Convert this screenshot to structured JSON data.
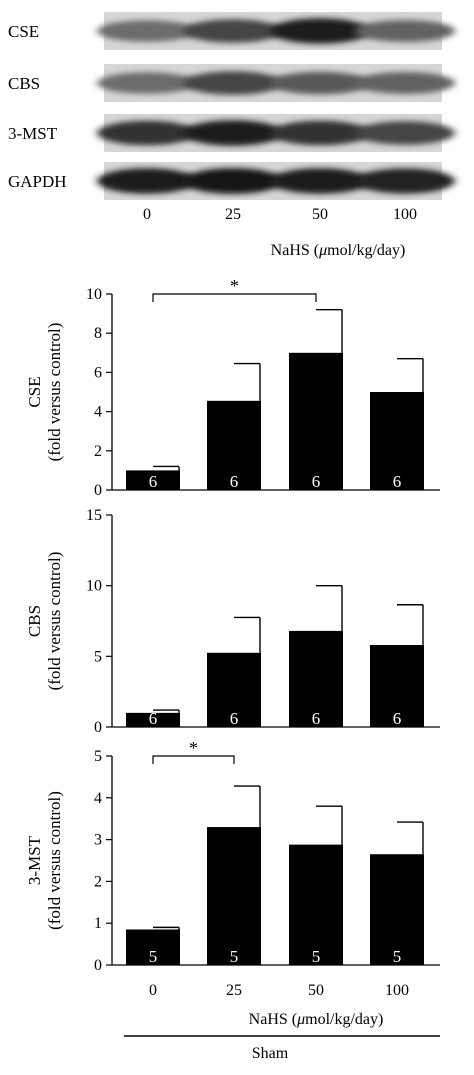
{
  "blot": {
    "rows": [
      "CSE",
      "CBS",
      "3-MST",
      "GAPDH"
    ],
    "lanes": [
      "0",
      "25",
      "50",
      "100"
    ],
    "xlabel_prefix": "NaHS (",
    "xlabel_mu": "μ",
    "xlabel_suffix": "mol/kg/day)",
    "band_intensity": [
      [
        0.55,
        0.75,
        0.95,
        0.6
      ],
      [
        0.55,
        0.75,
        0.65,
        0.6
      ],
      [
        0.85,
        0.95,
        0.85,
        0.75
      ],
      [
        0.95,
        0.98,
        0.95,
        0.92
      ]
    ]
  },
  "footer": {
    "xlabel_prefix": "NaHS (",
    "xlabel_mu": "μ",
    "xlabel_suffix": "mol/kg/day)",
    "group_label": "Sham"
  },
  "chart_data": [
    {
      "type": "bar",
      "categories": [
        "0",
        "25",
        "50",
        "100"
      ],
      "values": [
        1.0,
        4.55,
        7.0,
        5.0
      ],
      "errors": [
        0.2,
        1.9,
        2.2,
        1.7
      ],
      "n": [
        "6",
        "6",
        "6",
        "6"
      ],
      "ylabel": [
        "CSE",
        "(fold versus control)"
      ],
      "ylim": [
        0,
        10
      ],
      "yticks": [
        "0",
        "2",
        "4",
        "6",
        "8",
        "10"
      ],
      "significance": [
        {
          "from": 0,
          "to": 2,
          "label": "*"
        }
      ]
    },
    {
      "type": "bar",
      "categories": [
        "0",
        "25",
        "50",
        "100"
      ],
      "values": [
        1.0,
        5.25,
        6.8,
        5.8
      ],
      "errors": [
        0.2,
        2.5,
        3.2,
        2.85
      ],
      "n": [
        "6",
        "6",
        "6",
        "6"
      ],
      "ylabel": [
        "CBS",
        "(fold versus control)"
      ],
      "ylim": [
        0,
        15
      ],
      "yticks": [
        "0",
        "5",
        "10",
        "15"
      ],
      "significance": []
    },
    {
      "type": "bar",
      "categories": [
        "0",
        "25",
        "50",
        "100"
      ],
      "values": [
        0.85,
        3.3,
        2.88,
        2.65
      ],
      "errors": [
        0.05,
        0.98,
        0.92,
        0.77
      ],
      "n": [
        "5",
        "5",
        "5",
        "5"
      ],
      "ylabel": [
        "3-MST",
        "(fold versus control)"
      ],
      "ylim": [
        0,
        5
      ],
      "yticks": [
        "0",
        "1",
        "2",
        "3",
        "4",
        "5"
      ],
      "significance": [
        {
          "from": 0,
          "to": 1,
          "label": "*"
        }
      ]
    }
  ]
}
